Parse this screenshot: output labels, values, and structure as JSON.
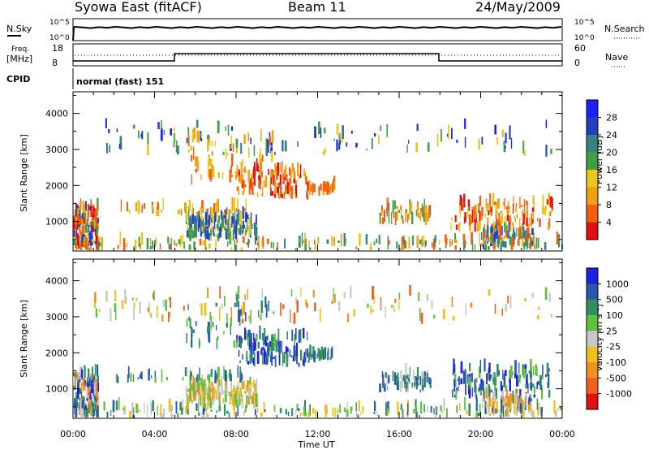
{
  "header": {
    "station": "Syowa East (fitACF)",
    "beam": "Beam 11",
    "date": "24/May/2009"
  },
  "panels": {
    "nsky_label": "N.Sky",
    "nsearch_label": "N.Search",
    "nsky_ticks": [
      "10^5",
      "10^0"
    ],
    "nsearch_ticks": [
      "10^5",
      "10^0"
    ],
    "freq_label_line1": "Freq.",
    "freq_label_line2": "[MHz]",
    "freq_ticks": [
      "18",
      "8"
    ],
    "nave_label": "Nave",
    "nave_ticks": [
      "60",
      "0"
    ],
    "cpid_label": "CPID",
    "cpid_value": "normal (fast) 151"
  },
  "colors": {
    "line": "#000000",
    "background": "#ffffff"
  },
  "chart_data": [
    {
      "type": "heatmap",
      "name_printed": "",
      "xlabel": "Time UT",
      "ylabel": "Slant Range [km]",
      "xlim": [
        0,
        24
      ],
      "ylim": [
        180,
        4600
      ],
      "x_tick_labels": [
        "00:00",
        "04:00",
        "08:00",
        "12:00",
        "16:00",
        "20:00",
        "00:00"
      ],
      "x_ticks": [
        0,
        4,
        8,
        12,
        16,
        20,
        24
      ],
      "y_ticks": [
        1000,
        2000,
        3000,
        4000
      ],
      "colorbar": {
        "label": "Power [dB]",
        "tick_labels": [
          "4",
          "8",
          "12",
          "16",
          "20",
          "24",
          "28"
        ],
        "colors": [
          "#1e1eff",
          "#2040c0",
          "#3a8080",
          "#40a040",
          "#e8c820",
          "#f0a010",
          "#f06010",
          "#e01010"
        ]
      }
    },
    {
      "type": "heatmap",
      "xlabel": "Time UT",
      "ylabel": "Slant Range [km]",
      "xlim": [
        0,
        24
      ],
      "ylim": [
        180,
        4600
      ],
      "x_tick_labels": [
        "00:00",
        "04:00",
        "08:00",
        "12:00",
        "16:00",
        "20:00",
        "00:00"
      ],
      "x_ticks": [
        0,
        4,
        8,
        12,
        16,
        20,
        24
      ],
      "y_ticks": [
        1000,
        2000,
        3000,
        4000
      ],
      "colorbar": {
        "label": "Velocity [m s",
        "label_sup": "-1",
        "label_end": "]",
        "tick_labels": [
          "1000",
          "500",
          "100",
          "25",
          "-25",
          "-100",
          "-500",
          "-1000"
        ],
        "colors": [
          "#2020e0",
          "#2858a8",
          "#309060",
          "#60c040",
          "#c8c8c8",
          "#f0c020",
          "#f09020",
          "#f06020",
          "#e01010"
        ]
      }
    }
  ]
}
